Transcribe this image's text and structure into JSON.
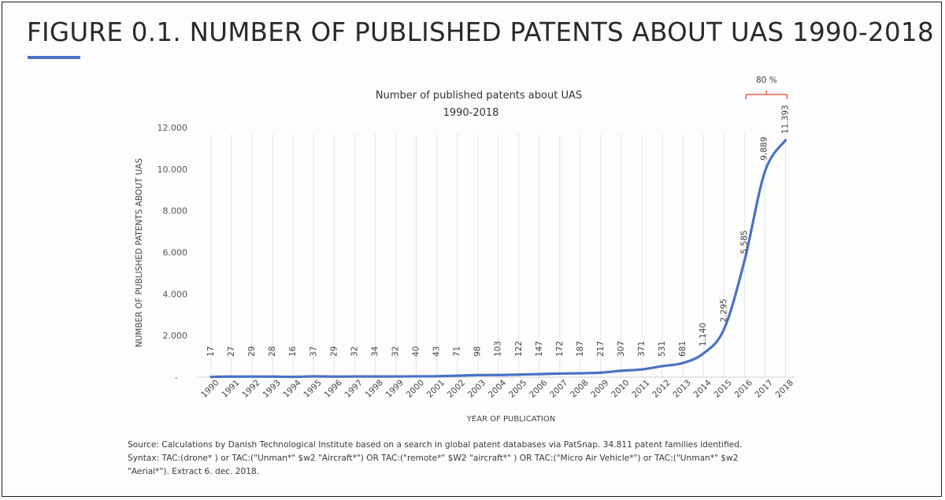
{
  "figure": {
    "title": "FIGURE 0.1. NUMBER OF PUBLISHED PATENTS ABOUT UAS 1990-2018",
    "accent_color": "#4a72c4"
  },
  "source": {
    "lines": [
      "Source: Calculations by Danish Technological Institute based on a search in global patent databases via PatSnap. 34.811 patent families identified.",
      "Syntax: TAC:(drone* ) or TAC:(\"Unman*\" $w2 \"Aircraft*\") OR TAC:(\"remote*\" $W2 \"aircraft*\" ) OR TAC:(\"Micro Air Vehicle*\") or TAC:(\"Unman*\" $w2",
      "\"Aerial*\"). Extract 6. dec. 2018."
    ]
  },
  "chart_data": {
    "type": "line",
    "title": "Number of published patents about UAS",
    "subtitle": "1990-2018",
    "xlabel": "YEAR OF PUBLICATION",
    "ylabel": "NUMBER OF PUBLISHED PATENTS ABOUT UAS",
    "categories": [
      "1990",
      "1991",
      "1992",
      "1993",
      "1994",
      "1995",
      "1996",
      "1997",
      "1998",
      "1999",
      "2000",
      "2001",
      "2002",
      "2003",
      "2004",
      "2005",
      "2006",
      "2007",
      "2008",
      "2009",
      "2010",
      "2011",
      "2012",
      "2013",
      "2014",
      "2015",
      "2016",
      "2017",
      "2018"
    ],
    "values": [
      17,
      27,
      29,
      28,
      16,
      37,
      29,
      32,
      34,
      32,
      40,
      43,
      71,
      98,
      103,
      122,
      147,
      172,
      187,
      217,
      307,
      371,
      531,
      681,
      1140,
      2295,
      5585,
      9889,
      11393
    ],
    "value_labels": [
      "17",
      "27",
      "29",
      "28",
      "16",
      "37",
      "29",
      "32",
      "34",
      "32",
      "40",
      "43",
      "71",
      "98",
      "103",
      "122",
      "147",
      "172",
      "187",
      "217",
      "307",
      "371",
      "531",
      "681",
      "1.140",
      "2.295",
      "5.585",
      "9.889",
      "11.393"
    ],
    "yticks": [
      0,
      2000,
      4000,
      6000,
      8000,
      10000,
      12000
    ],
    "ytick_labels": [
      "-",
      "2.000",
      "4.000",
      "6.000",
      "8.000",
      "10.000",
      "12.000"
    ],
    "ylim": [
      0,
      12000
    ],
    "grid": "vertical",
    "line_color": "#4a72c4",
    "annotation": {
      "text": "80 %",
      "from": "2016",
      "to": "2018",
      "color": "#e0604a"
    }
  }
}
